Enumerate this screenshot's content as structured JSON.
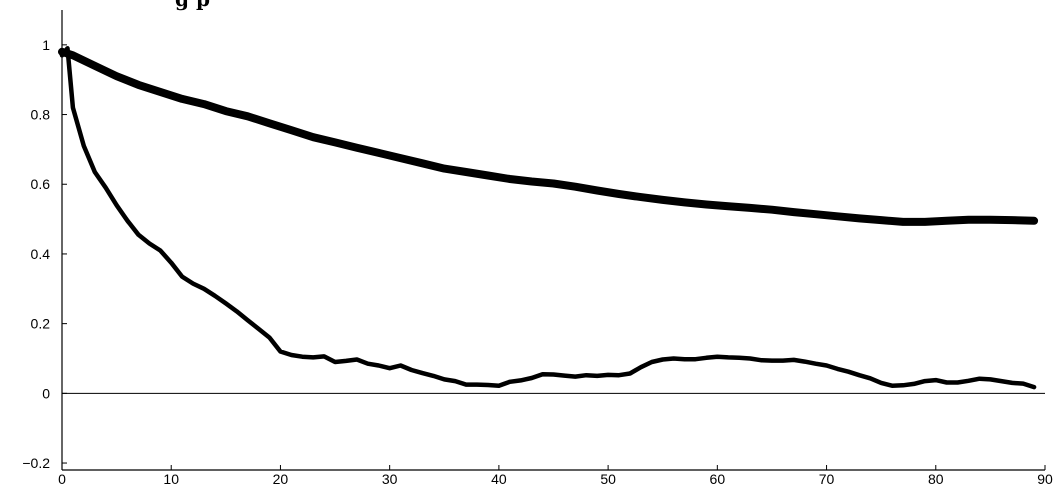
{
  "chart_data": {
    "type": "line",
    "title": "",
    "title_partial": "g    p",
    "xlabel": "",
    "ylabel": "",
    "xlim": [
      0,
      90
    ],
    "ylim": [
      -0.22,
      1.1
    ],
    "x_ticks": [
      0,
      10,
      20,
      30,
      40,
      50,
      60,
      70,
      80,
      90
    ],
    "x_tick_labels": [
      "0",
      "10",
      "20",
      "30",
      "40",
      "50",
      "60",
      "70",
      "80",
      "90"
    ],
    "y_ticks": [
      -0.2,
      0,
      0.2,
      0.4,
      0.6,
      0.8,
      1
    ],
    "y_tick_labels": [
      "−0.2",
      "0",
      "0.2",
      "0.4",
      "0.6",
      "0.8",
      "1"
    ],
    "grid": false,
    "zero_line": true,
    "series": [
      {
        "color": "#000000",
        "style": "thick",
        "x": [
          0,
          1,
          3,
          5,
          7,
          9,
          11,
          13,
          15,
          17,
          19,
          21,
          23,
          25,
          27,
          29,
          31,
          33,
          35,
          37,
          39,
          41,
          43,
          45,
          47,
          49,
          51,
          53,
          55,
          57,
          59,
          61,
          63,
          65,
          67,
          69,
          71,
          73,
          75,
          77,
          79,
          81,
          83,
          85,
          87,
          89
        ],
        "y": [
          0.98,
          0.97,
          0.94,
          0.91,
          0.885,
          0.865,
          0.845,
          0.83,
          0.81,
          0.795,
          0.775,
          0.755,
          0.735,
          0.72,
          0.705,
          0.69,
          0.675,
          0.66,
          0.645,
          0.635,
          0.625,
          0.615,
          0.608,
          0.602,
          0.593,
          0.582,
          0.572,
          0.563,
          0.555,
          0.548,
          0.542,
          0.537,
          0.532,
          0.527,
          0.52,
          0.514,
          0.508,
          0.502,
          0.497,
          0.492,
          0.492,
          0.495,
          0.498,
          0.498,
          0.497,
          0.495
        ]
      },
      {
        "color": "#000000",
        "style": "thin",
        "x": [
          0,
          0.5,
          1,
          2,
          3,
          4,
          5,
          6,
          7,
          8,
          9,
          10,
          11,
          12,
          13,
          14,
          15,
          16,
          17,
          18,
          19,
          20,
          21,
          22,
          23,
          24,
          25,
          26,
          27,
          28,
          29,
          30,
          31,
          32,
          33,
          34,
          35,
          36,
          37,
          38,
          39,
          40,
          41,
          42,
          43,
          44,
          45,
          46,
          47,
          48,
          49,
          50,
          51,
          52,
          53,
          54,
          55,
          56,
          57,
          58,
          59,
          60,
          61,
          62,
          63,
          64,
          65,
          66,
          67,
          68,
          69,
          70,
          71,
          72,
          73,
          74,
          75,
          76,
          77,
          78,
          79,
          80,
          81,
          82,
          83,
          84,
          85,
          86,
          87,
          88,
          89
        ],
        "y": [
          0.97,
          0.99,
          0.82,
          0.71,
          0.635,
          0.59,
          0.54,
          0.495,
          0.455,
          0.43,
          0.41,
          0.375,
          0.335,
          0.315,
          0.3,
          0.28,
          0.258,
          0.235,
          0.21,
          0.185,
          0.16,
          0.12,
          0.11,
          0.105,
          0.103,
          0.106,
          0.09,
          0.093,
          0.097,
          0.085,
          0.08,
          0.072,
          0.08,
          0.067,
          0.058,
          0.05,
          0.04,
          0.035,
          0.025,
          0.025,
          0.024,
          0.022,
          0.033,
          0.037,
          0.044,
          0.055,
          0.054,
          0.051,
          0.048,
          0.052,
          0.05,
          0.053,
          0.052,
          0.057,
          0.075,
          0.09,
          0.097,
          0.1,
          0.098,
          0.098,
          0.102,
          0.105,
          0.103,
          0.102,
          0.1,
          0.095,
          0.094,
          0.094,
          0.096,
          0.091,
          0.085,
          0.08,
          0.07,
          0.062,
          0.052,
          0.043,
          0.03,
          0.022,
          0.023,
          0.027,
          0.035,
          0.038,
          0.031,
          0.031,
          0.036,
          0.042,
          0.04,
          0.035,
          0.03,
          0.028,
          0.018
        ]
      }
    ]
  }
}
